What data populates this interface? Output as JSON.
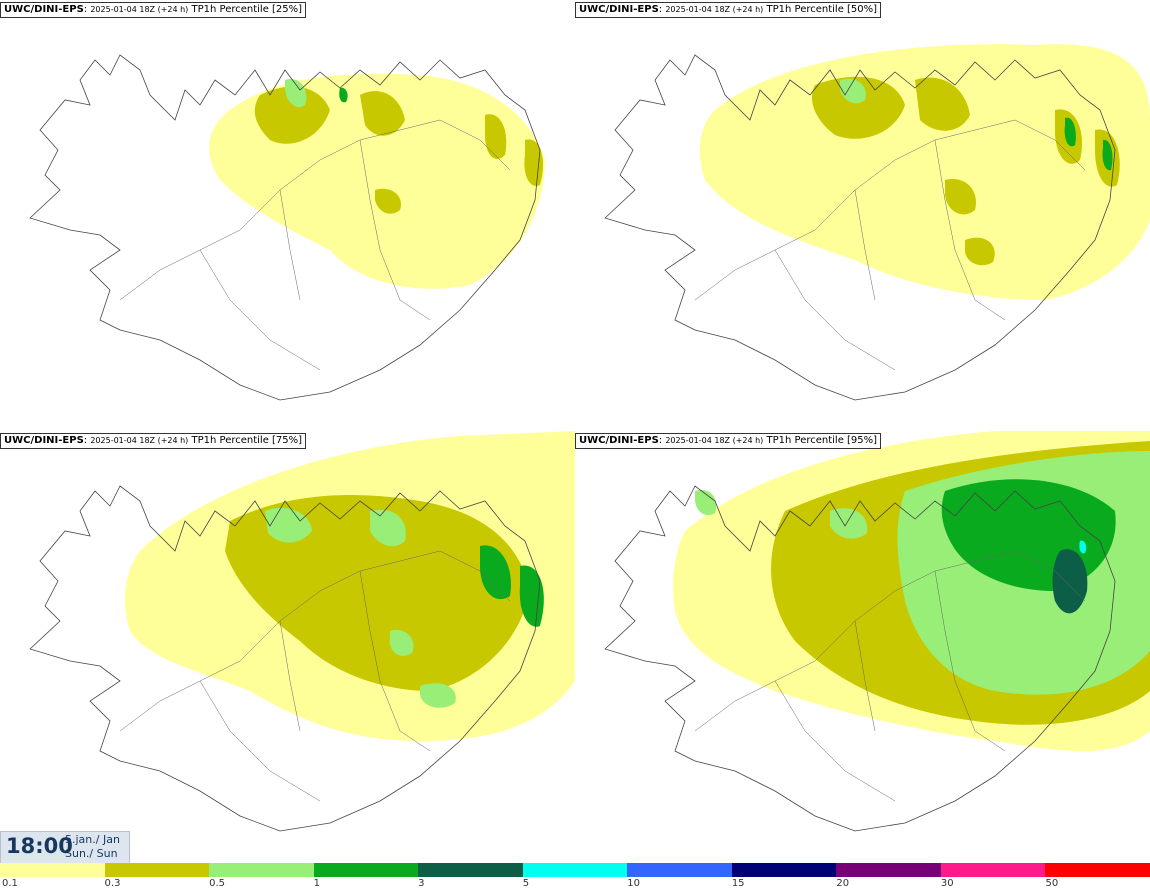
{
  "panels": [
    {
      "model": "UWC/DINI-EPS",
      "run": "2025-01-04 18Z (+24 h)",
      "title": "TP1h Percentile [25%]",
      "percentile": 25
    },
    {
      "model": "UWC/DINI-EPS",
      "run": "2025-01-04 18Z (+24 h)",
      "title": "TP1h Percentile [50%]",
      "percentile": 50
    },
    {
      "model": "UWC/DINI-EPS",
      "run": "2025-01-04 18Z (+24 h)",
      "title": "TP1h Percentile [75%]",
      "percentile": 75
    },
    {
      "model": "UWC/DINI-EPS",
      "run": "2025-01-04 18Z (+24 h)",
      "title": "TP1h Percentile [95%]",
      "percentile": 95
    }
  ],
  "valid_time": {
    "time": "18:00",
    "date": "5.jan./ Jan",
    "weekday": "Sun./ Sun"
  },
  "legend": {
    "thresholds": [
      "0.1",
      "0.3",
      "0.5",
      "1",
      "3",
      "5",
      "10",
      "15",
      "20",
      "30",
      "50"
    ],
    "colors": [
      "#ffff99",
      "#c8c800",
      "#99ee77",
      "#0aaa1e",
      "#0c5e46",
      "#00ffee",
      "#3366ff",
      "#000077",
      "#770077",
      "#ff1a8c",
      "#ff0000"
    ]
  }
}
